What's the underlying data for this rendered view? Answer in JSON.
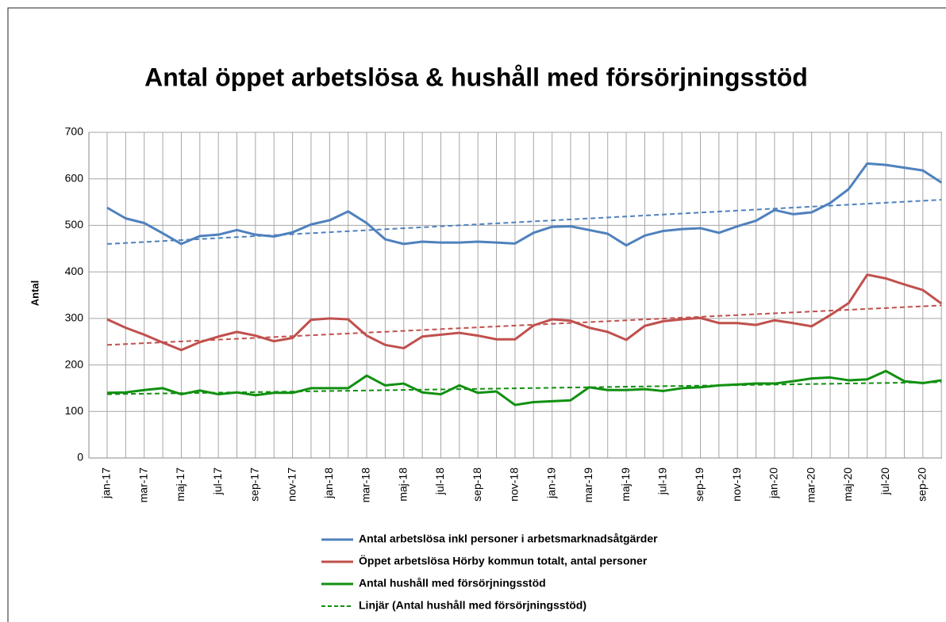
{
  "chart_data": {
    "type": "line",
    "title": "Antal öppet arbetslösa & hushåll med försörjningsstöd",
    "y_label": "Antal",
    "categories": [
      "jan-17",
      null,
      "mar-17",
      null,
      "maj-17",
      null,
      "jul-17",
      null,
      "sep-17",
      null,
      "nov-17",
      null,
      "jan-18",
      null,
      "mar-18",
      null,
      "maj-18",
      null,
      "jul-18",
      null,
      "sep-18",
      null,
      "nov-18",
      null,
      "jan-19",
      null,
      "mar-19",
      null,
      "maj-19",
      null,
      "jul-19",
      null,
      "sep-19",
      null,
      "nov-19",
      null,
      "jan-20",
      null,
      "mar-20",
      null,
      "maj-20",
      null,
      "jul-20",
      null,
      "sep-20",
      null
    ],
    "series": [
      {
        "name": "Antal arbetslösa inkl personer i arbetsmarknadsåtgärder",
        "color": "#4f81bd",
        "values": [
          538,
          515,
          505,
          483,
          460,
          477,
          480,
          490,
          480,
          476,
          485,
          502,
          511,
          530,
          505,
          470,
          460,
          465,
          463,
          463,
          465,
          463,
          461,
          484,
          497,
          498,
          490,
          482,
          457,
          478,
          488,
          492,
          494,
          484,
          498,
          510,
          533,
          524,
          528,
          548,
          578,
          633,
          630,
          624,
          618,
          592
        ],
        "trend": {
          "from": 460,
          "to": 555
        }
      },
      {
        "name": "Öppet arbetslösa Hörby kommun totalt, antal personer",
        "color": "#c0504d",
        "values": [
          298,
          280,
          265,
          248,
          232,
          249,
          261,
          271,
          263,
          251,
          258,
          297,
          300,
          298,
          263,
          243,
          236,
          261,
          265,
          269,
          263,
          255,
          255,
          285,
          298,
          295,
          280,
          271,
          254,
          284,
          294,
          298,
          301,
          290,
          290,
          286,
          296,
          290,
          283,
          307,
          333,
          394,
          386,
          373,
          361,
          332
        ],
        "trend": {
          "from": 243,
          "to": 328
        }
      },
      {
        "name": "Antal hushåll med försörjningsstöd",
        "color": "#109010",
        "values": [
          140,
          141,
          146,
          150,
          137,
          145,
          137,
          141,
          135,
          140,
          140,
          150,
          150,
          150,
          177,
          156,
          160,
          141,
          137,
          156,
          140,
          143,
          114,
          120,
          122,
          124,
          152,
          146,
          146,
          148,
          144,
          150,
          152,
          156,
          158,
          160,
          160,
          165,
          171,
          173,
          167,
          169,
          187,
          165,
          161,
          167
        ],
        "trend": {
          "from": 137,
          "to": 163,
          "name": "Linjär (Antal hushåll med försörjningsstöd)"
        }
      }
    ],
    "ylim": [
      0,
      700
    ],
    "yticks": [
      0,
      100,
      200,
      300,
      400,
      500,
      600,
      700
    ],
    "grid": true
  }
}
